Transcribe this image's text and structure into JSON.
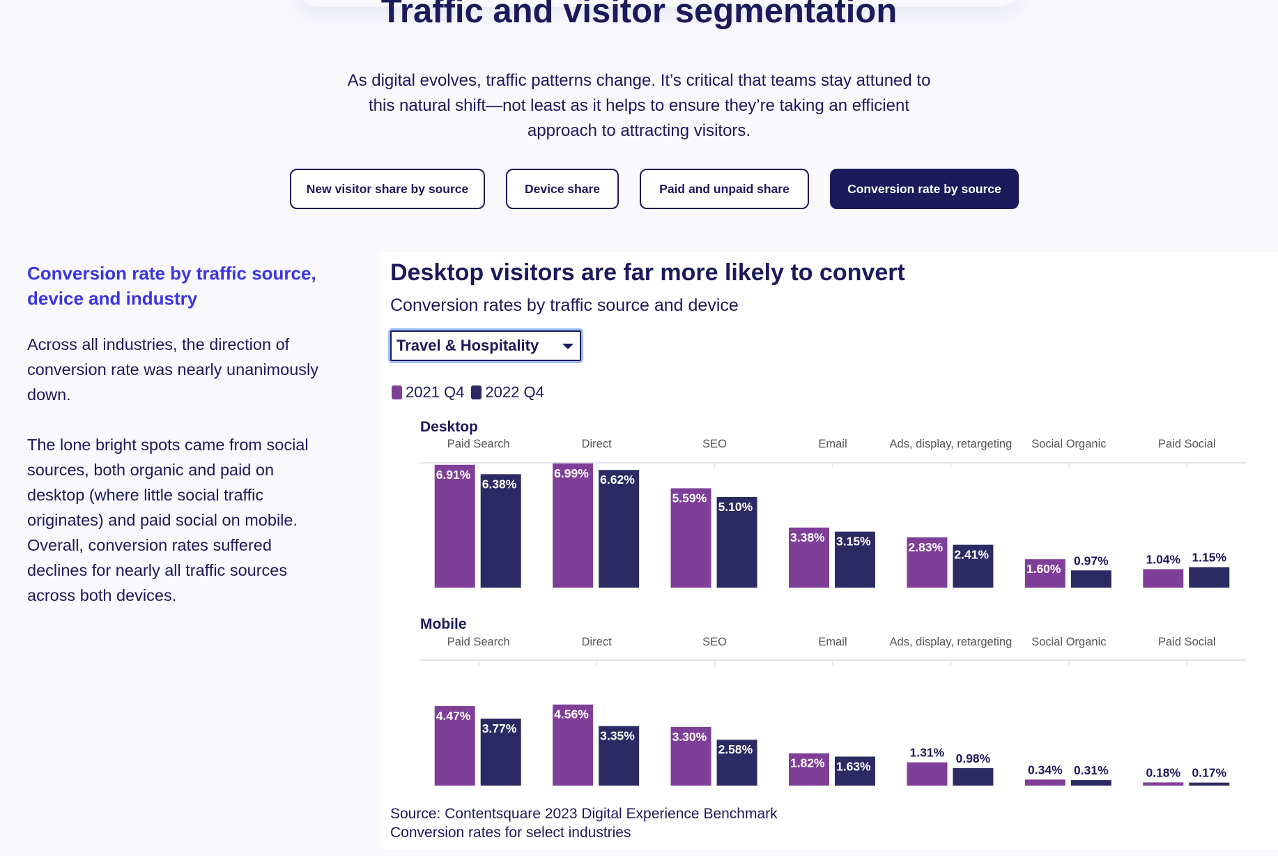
{
  "header": {
    "title": "Traffic and visitor segmentation",
    "intro_line1": "As digital evolves, traffic patterns change. It’s critical that teams stay attuned to",
    "intro_line2": "this natural shift—not least as it helps to ensure they’re taking an efficient",
    "intro_line3": "approach to attracting visitors."
  },
  "tabs": [
    {
      "label": "New visitor share by source",
      "active": false
    },
    {
      "label": "Device share",
      "active": false
    },
    {
      "label": "Paid and unpaid share",
      "active": false
    },
    {
      "label": "Conversion rate by source",
      "active": true
    }
  ],
  "sidebar": {
    "heading_line1": "Conversion rate by traffic source,",
    "heading_line2": "device and industry",
    "p1_line1": "Across all industries, the direction of",
    "p1_line2": "conversion rate was nearly unanimously",
    "p1_line3": "down.",
    "p2_line1": "The lone bright spots came from social",
    "p2_line2": "sources, both organic and paid on",
    "p2_line3": "desktop (where little social traffic",
    "p2_line4": "originates) and paid social on mobile.",
    "p2_line5": "Overall, conversion rates suffered",
    "p2_line6": "declines for nearly all traffic sources",
    "p2_line7": "across both devices."
  },
  "industry_select": {
    "value": "Travel & Hospitality"
  },
  "colors": {
    "series_2021": "#7f3f98",
    "series_2022": "#2b2a63",
    "heading_blue": "#3a36e0",
    "navy": "#1b1a5a"
  },
  "chart_data": {
    "type": "bar",
    "title": "Desktop visitors are far more likely to convert",
    "subtitle": "Conversion rates by traffic source and device",
    "legend": [
      "2021 Q4",
      "2022 Q4"
    ],
    "legend_position": "top-left",
    "grid": false,
    "categories": [
      "Paid Search",
      "Direct",
      "SEO",
      "Email",
      "Ads, display, retargeting",
      "Social Organic",
      "Paid Social"
    ],
    "panels": [
      {
        "name": "Desktop",
        "series": [
          {
            "name": "2021 Q4",
            "values": [
              6.91,
              6.99,
              5.59,
              3.38,
              2.83,
              1.6,
              1.04
            ],
            "labels": [
              "6.91%",
              "6.99%",
              "5.59%",
              "3.38%",
              "2.83%",
              "1.60%",
              "1.04%"
            ]
          },
          {
            "name": "2022 Q4",
            "values": [
              6.38,
              6.62,
              5.1,
              3.15,
              2.41,
              0.97,
              1.15
            ],
            "labels": [
              "6.38%",
              "6.62%",
              "5.10%",
              "3.15%",
              "2.41%",
              "0.97%",
              "1.15%"
            ]
          }
        ]
      },
      {
        "name": "Mobile",
        "series": [
          {
            "name": "2021 Q4",
            "values": [
              4.47,
              4.56,
              3.3,
              1.82,
              1.31,
              0.34,
              0.18
            ],
            "labels": [
              "4.47%",
              "4.56%",
              "3.30%",
              "1.82%",
              "1.31%",
              "0.34%",
              "0.18%"
            ]
          },
          {
            "name": "2022 Q4",
            "values": [
              3.77,
              3.35,
              2.58,
              1.63,
              0.98,
              0.31,
              0.17
            ],
            "labels": [
              "3.77%",
              "3.35%",
              "2.58%",
              "1.63%",
              "0.98%",
              "0.31%",
              "0.17%"
            ]
          }
        ]
      }
    ],
    "source_line1": "Source: Contentsquare 2023 Digital Experience Benchmark",
    "source_line2": "Conversion rates for select industries"
  }
}
